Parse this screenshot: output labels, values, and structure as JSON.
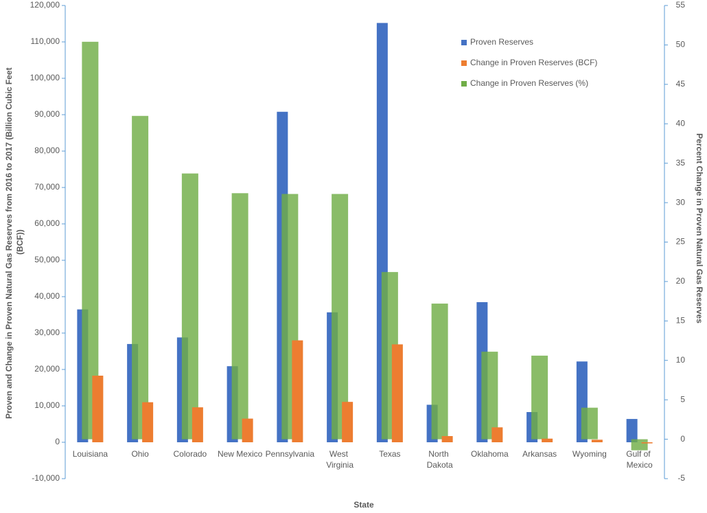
{
  "chart_data": {
    "type": "bar",
    "x_label": "State",
    "y_label": "Proven and Change in Proven Natural Gas Reserves from 2016 to 2017 (Billion Cubic Feet (BCF))",
    "y2_label": "Percent Change in Proven Natural Gas Reserves",
    "categories": [
      "Louisiana",
      "Ohio",
      "Colorado",
      "New Mexico",
      "Pennsylvania",
      "West Virginia",
      "Texas",
      "North Dakota",
      "Oklahoma",
      "Arkansas",
      "Wyoming",
      "Gulf of Mexico"
    ],
    "series": [
      {
        "name": "Proven Reserves",
        "color": "#4472c4",
        "values": [
          36500,
          27000,
          28800,
          20900,
          90800,
          35700,
          115200,
          10300,
          38500,
          8300,
          22200,
          6400
        ]
      },
      {
        "name": "Change in Proven Reserves (BCF)",
        "color": "#ed7d31",
        "values": [
          18300,
          11000,
          9600,
          6500,
          28000,
          11100,
          26900,
          1700,
          4100,
          1000,
          700,
          -300
        ]
      },
      {
        "name": "Change in Proven Reserves (%)",
        "color": "#70ad47",
        "axis": "y2",
        "values": [
          50.4,
          41.0,
          33.7,
          31.2,
          31.1,
          31.1,
          21.2,
          17.2,
          11.1,
          10.6,
          4.0,
          -1.4
        ]
      }
    ],
    "ylim": [
      -10000,
      120000
    ],
    "yticks": [
      {
        "value": -10000,
        "label": "-10,000"
      },
      0,
      {
        "value": 10000,
        "label": "10,000"
      },
      {
        "value": 20000,
        "label": "20,000"
      },
      {
        "value": 30000,
        "label": "30,000"
      },
      {
        "value": 40000,
        "label": "40,000"
      },
      {
        "value": 50000,
        "label": "50,000"
      },
      {
        "value": 60000,
        "label": "60,000"
      },
      {
        "value": 70000,
        "label": "70,000"
      },
      {
        "value": 80000,
        "label": "80,000"
      },
      {
        "value": 90000,
        "label": "90,000"
      },
      {
        "value": 100000,
        "label": "100,000"
      },
      {
        "value": 110000,
        "label": "110,000"
      },
      {
        "value": 120000,
        "label": "120,000"
      }
    ],
    "y2lim": [
      -5,
      55
    ],
    "y2ticks": [
      -5,
      0,
      5,
      10,
      15,
      20,
      25,
      30,
      35,
      40,
      45,
      50,
      55
    ],
    "grid": false,
    "legend_position": "top-right"
  }
}
